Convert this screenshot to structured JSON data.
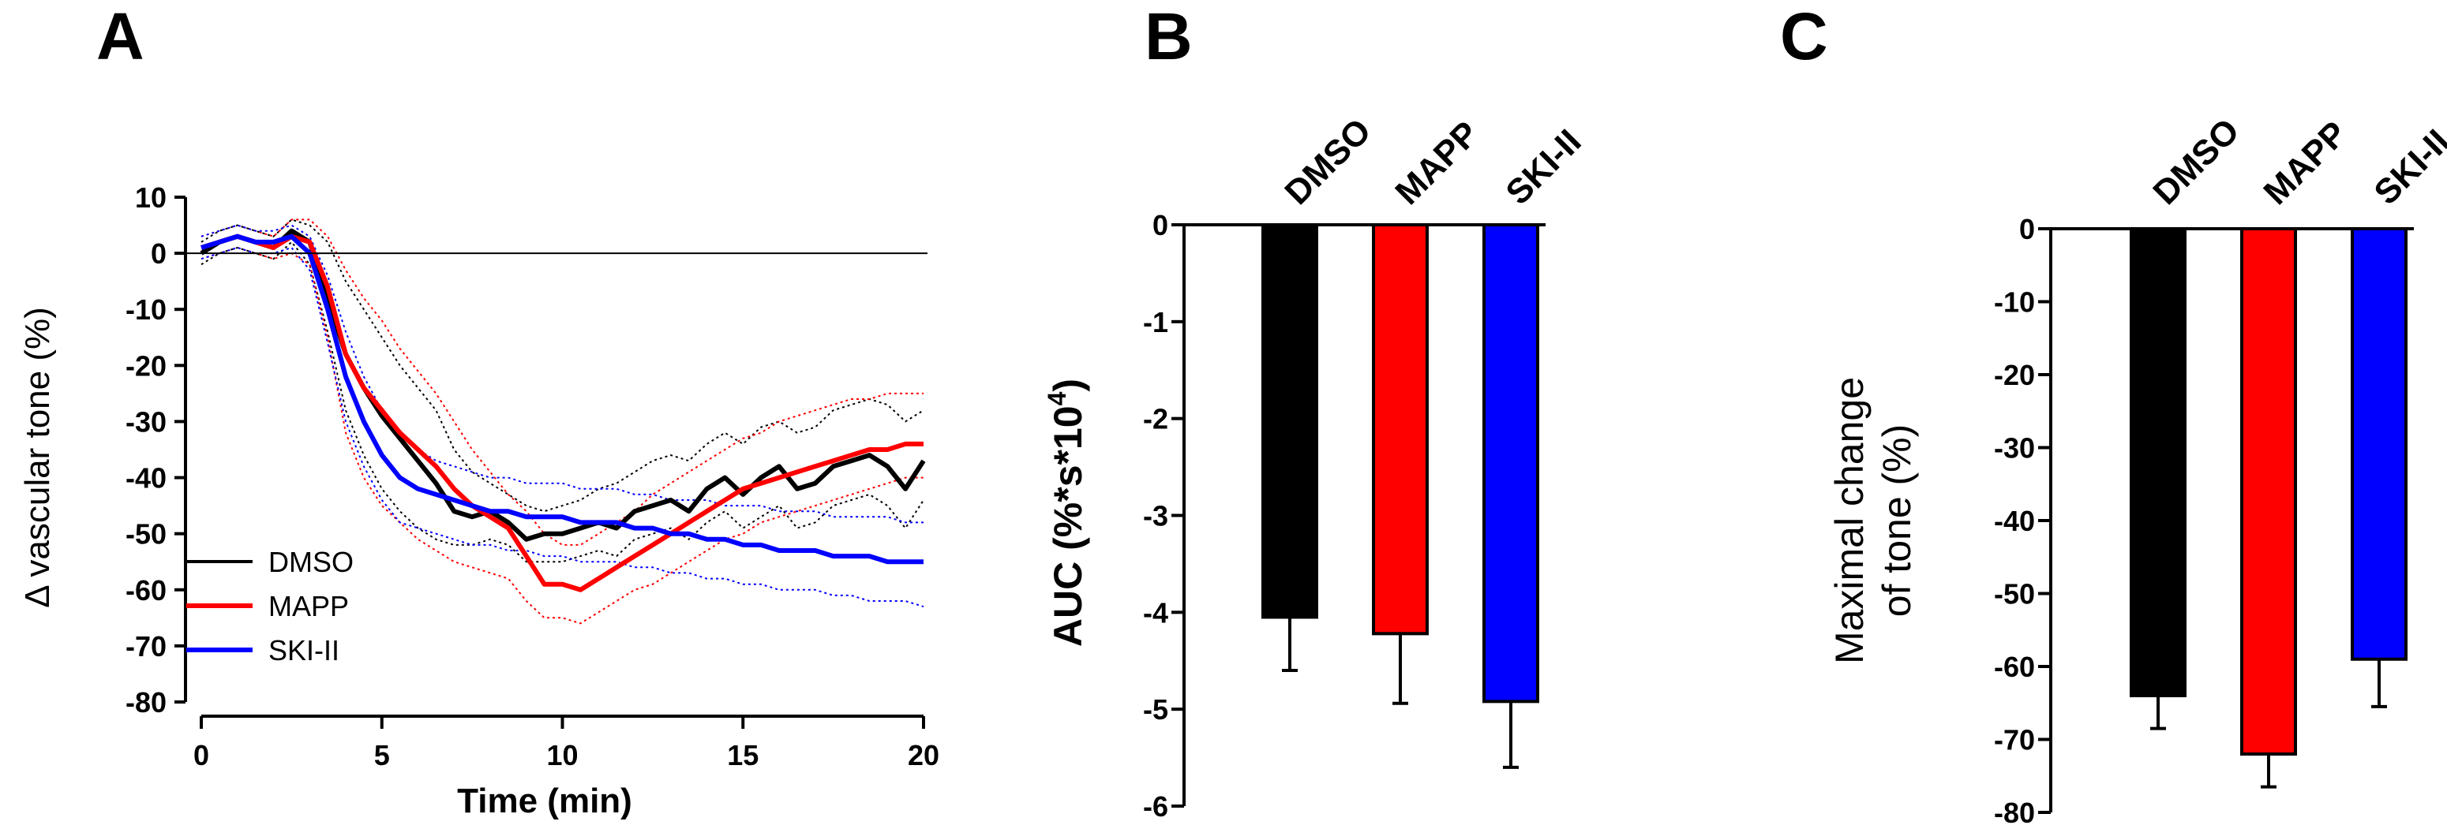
{
  "chart_data": [
    {
      "panel": "A",
      "type": "line",
      "xlabel": "Time (min)",
      "ylabel": "Δ vascular tone (%)",
      "xlim": [
        0,
        20
      ],
      "ylim": [
        -80,
        10
      ],
      "xticks": [
        0,
        5,
        10,
        15,
        20
      ],
      "yticks": [
        10,
        0,
        -10,
        -20,
        -30,
        -40,
        -50,
        -60,
        -70,
        -80
      ],
      "zero_line": true,
      "legend": "bottom-left",
      "colors": {
        "DMSO": "#000000",
        "MAPP": "#ff0000",
        "SKI-II": "#0000ff"
      },
      "series": [
        {
          "name": "DMSO",
          "color": "#000000",
          "x": [
            0,
            0.5,
            1,
            1.5,
            2,
            2.5,
            3,
            3.5,
            4,
            4.5,
            5,
            5.5,
            6,
            6.5,
            7,
            7.5,
            8,
            8.5,
            9,
            9.5,
            10,
            10.5,
            11,
            11.5,
            12,
            12.5,
            13,
            13.5,
            14,
            14.5,
            15,
            15.5,
            16,
            16.5,
            17,
            17.5,
            18,
            18.5,
            19,
            19.5,
            20
          ],
          "y": [
            0,
            2,
            3,
            2,
            1,
            4,
            2,
            -8,
            -18,
            -24,
            -29,
            -33,
            -37,
            -41,
            -46,
            -47,
            -46,
            -48,
            -51,
            -50,
            -50,
            -49,
            -48,
            -49,
            -46,
            -45,
            -44,
            -46,
            -42,
            -40,
            -43,
            -40,
            -38,
            -42,
            -41,
            -38,
            -37,
            -36,
            -38,
            -42,
            -37
          ],
          "band_upper": [
            2,
            4,
            5,
            4,
            3,
            6,
            5,
            2,
            -5,
            -10,
            -15,
            -20,
            -24,
            -28,
            -35,
            -39,
            -41,
            -43,
            -45,
            -46,
            -45,
            -44,
            -42,
            -41,
            -39,
            -37,
            -36,
            -37,
            -34,
            -32,
            -34,
            -31,
            -30,
            -32,
            -31,
            -28,
            -27,
            -26,
            -27,
            -30,
            -28
          ],
          "band_lower": [
            -2,
            0,
            1,
            0,
            -1,
            2,
            -2,
            -14,
            -28,
            -36,
            -42,
            -46,
            -49,
            -51,
            -52,
            -52,
            -51,
            -52,
            -55,
            -55,
            -55,
            -54,
            -53,
            -54,
            -51,
            -50,
            -49,
            -51,
            -48,
            -46,
            -49,
            -47,
            -45,
            -49,
            -48,
            -45,
            -44,
            -43,
            -45,
            -49,
            -44
          ]
        },
        {
          "name": "MAPP",
          "color": "#ff0000",
          "x": [
            0,
            0.5,
            1,
            1.5,
            2,
            2.5,
            3,
            3.5,
            4,
            4.5,
            5,
            5.5,
            6,
            6.5,
            7,
            7.5,
            8,
            8.5,
            9,
            9.5,
            10,
            10.5,
            11,
            11.5,
            12,
            12.5,
            13,
            13.5,
            14,
            14.5,
            15,
            15.5,
            16,
            16.5,
            17,
            17.5,
            18,
            18.5,
            19,
            19.5,
            20
          ],
          "y": [
            1,
            2,
            3,
            2,
            1,
            3,
            2,
            -6,
            -18,
            -24,
            -28,
            -32,
            -35,
            -38,
            -42,
            -45,
            -47,
            -49,
            -54,
            -59,
            -59,
            -60,
            -58,
            -56,
            -54,
            -52,
            -50,
            -48,
            -46,
            -44,
            -42,
            -41,
            -40,
            -39,
            -38,
            -37,
            -36,
            -35,
            -35,
            -34,
            -34
          ],
          "band_upper": [
            3,
            4,
            5,
            4,
            3,
            6,
            6,
            3,
            -3,
            -8,
            -12,
            -17,
            -21,
            -25,
            -30,
            -35,
            -39,
            -43,
            -46,
            -50,
            -52,
            -52,
            -50,
            -48,
            -46,
            -43,
            -41,
            -39,
            -37,
            -35,
            -33,
            -32,
            -30,
            -29,
            -28,
            -27,
            -26,
            -26,
            -25,
            -25,
            -25
          ],
          "band_lower": [
            -1,
            0,
            1,
            0,
            -1,
            0,
            -2,
            -15,
            -32,
            -40,
            -45,
            -48,
            -51,
            -53,
            -55,
            -56,
            -57,
            -58,
            -62,
            -65,
            -65,
            -66,
            -64,
            -62,
            -60,
            -59,
            -57,
            -55,
            -53,
            -51,
            -50,
            -48,
            -47,
            -46,
            -45,
            -44,
            -43,
            -42,
            -41,
            -40,
            -40
          ]
        },
        {
          "name": "SKI-II",
          "color": "#0000ff",
          "x": [
            0,
            0.5,
            1,
            1.5,
            2,
            2.5,
            3,
            3.5,
            4,
            4.5,
            5,
            5.5,
            6,
            6.5,
            7,
            7.5,
            8,
            8.5,
            9,
            9.5,
            10,
            10.5,
            11,
            11.5,
            12,
            12.5,
            13,
            13.5,
            14,
            14.5,
            15,
            15.5,
            16,
            16.5,
            17,
            17.5,
            18,
            18.5,
            19,
            19.5,
            20
          ],
          "y": [
            1,
            2,
            3,
            2,
            2,
            3,
            0,
            -10,
            -22,
            -30,
            -36,
            -40,
            -42,
            -43,
            -44,
            -45,
            -46,
            -46,
            -47,
            -47,
            -47,
            -48,
            -48,
            -48,
            -49,
            -49,
            -50,
            -50,
            -51,
            -51,
            -52,
            -52,
            -53,
            -53,
            -53,
            -54,
            -54,
            -54,
            -55,
            -55,
            -55
          ],
          "band_upper": [
            3,
            4,
            5,
            4,
            4,
            5,
            3,
            -4,
            -14,
            -22,
            -28,
            -32,
            -35,
            -37,
            -38,
            -39,
            -40,
            -40,
            -41,
            -41,
            -41,
            -42,
            -42,
            -42,
            -43,
            -43,
            -44,
            -44,
            -44,
            -45,
            -45,
            -45,
            -46,
            -46,
            -46,
            -47,
            -47,
            -47,
            -47,
            -48,
            -48
          ],
          "band_lower": [
            -1,
            0,
            1,
            0,
            0,
            1,
            -3,
            -16,
            -30,
            -38,
            -44,
            -48,
            -49,
            -50,
            -51,
            -52,
            -52,
            -53,
            -53,
            -54,
            -54,
            -55,
            -55,
            -55,
            -56,
            -56,
            -57,
            -57,
            -58,
            -58,
            -59,
            -59,
            -60,
            -60,
            -60,
            -61,
            -61,
            -62,
            -62,
            -62,
            -63
          ]
        }
      ]
    },
    {
      "panel": "B",
      "type": "bar",
      "ylabel_main": "AUC (%*s*10",
      "ylabel_exp": "4",
      "ylabel_close": ")",
      "categories": [
        "DMSO",
        "MAPP",
        "SKI-II"
      ],
      "values": [
        -4.05,
        -4.22,
        -4.92
      ],
      "errors": [
        0.55,
        0.72,
        0.68
      ],
      "colors": [
        "#000000",
        "#ff0000",
        "#0000ff"
      ],
      "ylim": [
        -6,
        0
      ],
      "yticks": [
        0,
        -1,
        -2,
        -3,
        -4,
        -5,
        -6
      ]
    },
    {
      "panel": "C",
      "type": "bar",
      "ylabel_line1": "Maximal change",
      "ylabel_line2": "of tone  (%)",
      "categories": [
        "DMSO",
        "MAPP",
        "SKI-II"
      ],
      "values": [
        -64,
        -72,
        -59
      ],
      "errors": [
        4.5,
        4.5,
        6.5
      ],
      "colors": [
        "#000000",
        "#ff0000",
        "#0000ff"
      ],
      "ylim": [
        -80,
        0
      ],
      "yticks": [
        0,
        -10,
        -20,
        -30,
        -40,
        -50,
        -60,
        -70,
        -80
      ]
    }
  ]
}
